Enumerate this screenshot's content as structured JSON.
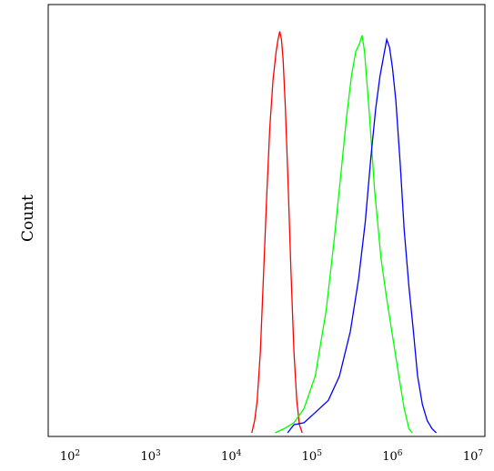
{
  "chart_data": {
    "type": "line",
    "title": "",
    "xlabel": "",
    "ylabel": "Count",
    "x_scale": "log10",
    "xlim": [
      100,
      10000000
    ],
    "ylim": [
      0,
      1
    ],
    "grid": false,
    "legend": "none",
    "x_ticks": [
      {
        "value": 100,
        "base": "10",
        "exp": "2"
      },
      {
        "value": 1000,
        "base": "10",
        "exp": "3"
      },
      {
        "value": 10000,
        "base": "10",
        "exp": "4"
      },
      {
        "value": 100000,
        "base": "10",
        "exp": "5"
      },
      {
        "value": 1000000,
        "base": "10",
        "exp": "6"
      },
      {
        "value": 10000000,
        "base": "10",
        "exp": "7"
      }
    ],
    "series": [
      {
        "color": "#ff0000",
        "points": [
          [
            18000,
            0.0
          ],
          [
            19500,
            0.03
          ],
          [
            21000,
            0.08
          ],
          [
            23000,
            0.2
          ],
          [
            25000,
            0.38
          ],
          [
            27500,
            0.58
          ],
          [
            30000,
            0.75
          ],
          [
            33000,
            0.87
          ],
          [
            36000,
            0.94
          ],
          [
            38000,
            0.97
          ],
          [
            40000,
            0.99
          ],
          [
            42000,
            0.97
          ],
          [
            44000,
            0.92
          ],
          [
            47000,
            0.8
          ],
          [
            51000,
            0.6
          ],
          [
            55000,
            0.4
          ],
          [
            60000,
            0.2
          ],
          [
            65000,
            0.08
          ],
          [
            70000,
            0.02
          ],
          [
            76000,
            0.0
          ]
        ]
      },
      {
        "color": "#00ff00",
        "points": [
          [
            35000,
            0.0
          ],
          [
            45000,
            0.01
          ],
          [
            60000,
            0.025
          ],
          [
            80000,
            0.06
          ],
          [
            110000,
            0.14
          ],
          [
            150000,
            0.3
          ],
          [
            190000,
            0.48
          ],
          [
            230000,
            0.64
          ],
          [
            270000,
            0.78
          ],
          [
            310000,
            0.88
          ],
          [
            350000,
            0.94
          ],
          [
            390000,
            0.96
          ],
          [
            420000,
            0.98
          ],
          [
            450000,
            0.94
          ],
          [
            520000,
            0.78
          ],
          [
            600000,
            0.6
          ],
          [
            720000,
            0.43
          ],
          [
            850000,
            0.33
          ],
          [
            1000000,
            0.24
          ],
          [
            1200000,
            0.14
          ],
          [
            1400000,
            0.06
          ],
          [
            1600000,
            0.01
          ],
          [
            1750000,
            0.0
          ]
        ]
      },
      {
        "color": "#0000ff",
        "points": [
          [
            50000,
            0.0
          ],
          [
            60000,
            0.02
          ],
          [
            80000,
            0.025
          ],
          [
            110000,
            0.05
          ],
          [
            160000,
            0.08
          ],
          [
            220000,
            0.14
          ],
          [
            300000,
            0.25
          ],
          [
            380000,
            0.38
          ],
          [
            460000,
            0.52
          ],
          [
            540000,
            0.68
          ],
          [
            620000,
            0.8
          ],
          [
            700000,
            0.88
          ],
          [
            780000,
            0.93
          ],
          [
            850000,
            0.97
          ],
          [
            920000,
            0.95
          ],
          [
            1000000,
            0.9
          ],
          [
            1100000,
            0.82
          ],
          [
            1250000,
            0.66
          ],
          [
            1400000,
            0.5
          ],
          [
            1600000,
            0.36
          ],
          [
            1800000,
            0.26
          ],
          [
            2050000,
            0.14
          ],
          [
            2350000,
            0.07
          ],
          [
            2700000,
            0.03
          ],
          [
            3100000,
            0.01
          ],
          [
            3500000,
            0.0
          ]
        ]
      }
    ]
  }
}
